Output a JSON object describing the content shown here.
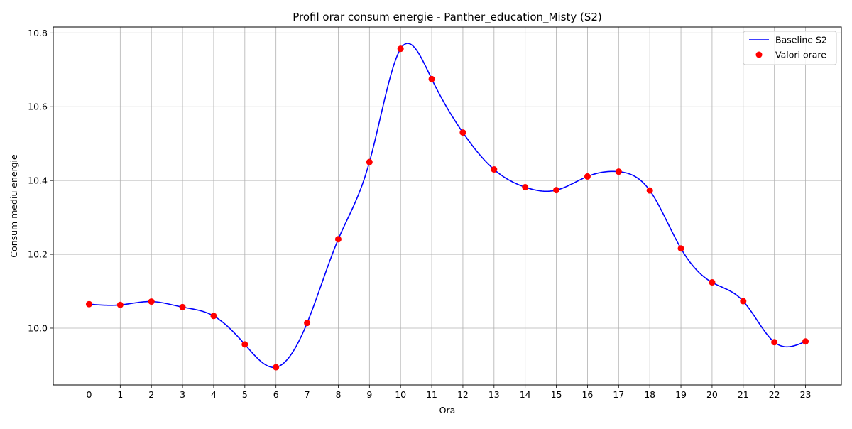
{
  "chart_data": {
    "type": "line",
    "title": "Profil orar consum energie - Panther_education_Misty (S2)",
    "xlabel": "Ora",
    "ylabel": "Consum mediu energie",
    "x": [
      0,
      1,
      2,
      3,
      4,
      5,
      6,
      7,
      8,
      9,
      10,
      11,
      12,
      13,
      14,
      15,
      16,
      17,
      18,
      19,
      20,
      21,
      22,
      23
    ],
    "xlim": [
      -1.15,
      24.15
    ],
    "ylim": [
      9.846,
      10.816
    ],
    "yticks": [
      10.0,
      10.2,
      10.4,
      10.6,
      10.8
    ],
    "ytick_labels": [
      "10.0",
      "10.2",
      "10.4",
      "10.6",
      "10.8"
    ],
    "grid": true,
    "legend_position": "top-right",
    "series": [
      {
        "name": "Baseline S2",
        "kind": "line",
        "color": "#0000ff",
        "interpolation": "smooth-spline",
        "values": [
          10.065,
          10.063,
          10.072,
          10.057,
          10.033,
          9.956,
          9.894,
          10.014,
          10.241,
          10.45,
          10.757,
          10.675,
          10.53,
          10.43,
          10.382,
          10.374,
          10.411,
          10.424,
          10.373,
          10.216,
          10.124,
          10.073,
          9.962,
          9.964
        ]
      },
      {
        "name": "Valori orare",
        "kind": "scatter",
        "color": "#ff0000",
        "values": [
          10.065,
          10.063,
          10.072,
          10.057,
          10.033,
          9.956,
          9.894,
          10.014,
          10.241,
          10.45,
          10.757,
          10.675,
          10.53,
          10.43,
          10.382,
          10.374,
          10.411,
          10.424,
          10.373,
          10.216,
          10.124,
          10.073,
          9.962,
          9.964
        ]
      }
    ]
  }
}
